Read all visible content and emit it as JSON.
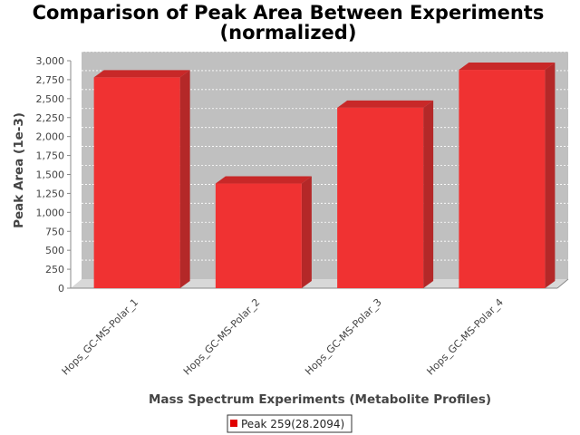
{
  "chart_data": {
    "type": "bar",
    "title_lines": [
      "Comparison of Peak Area Between Experiments",
      "(normalized)"
    ],
    "xlabel": "Mass Spectrum Experiments (Metabolite Profiles)",
    "ylabel": "Peak Area (1e-3)",
    "categories": [
      "Hops_GC-MS-Polar_1",
      "Hops_GC-MS-Polar_2",
      "Hops_GC-MS-Polar_3",
      "Hops_GC-MS-Polar_4"
    ],
    "series": [
      {
        "name": "Peak 259(28.2094)",
        "values": [
          2780,
          1380,
          2380,
          2880
        ]
      }
    ],
    "ylim": [
      0,
      3000
    ],
    "yticks": [
      0,
      250,
      500,
      750,
      1000,
      1250,
      1500,
      1750,
      2000,
      2250,
      2500,
      2750,
      3000
    ],
    "ytick_labels": [
      "0",
      "250",
      "500",
      "750",
      "1,000",
      "1,250",
      "1,500",
      "1,750",
      "2,000",
      "2,250",
      "2,500",
      "2,750",
      "3,000"
    ],
    "grid": true,
    "legend_position": "bottom-center",
    "colors": {
      "bar_front": "#f03232",
      "bar_top": "#c82828",
      "bar_side": "#b42828",
      "plot_back": "#c0c0c0",
      "plot_floor": "#d8d8d8",
      "grid": "#ffffff"
    }
  }
}
